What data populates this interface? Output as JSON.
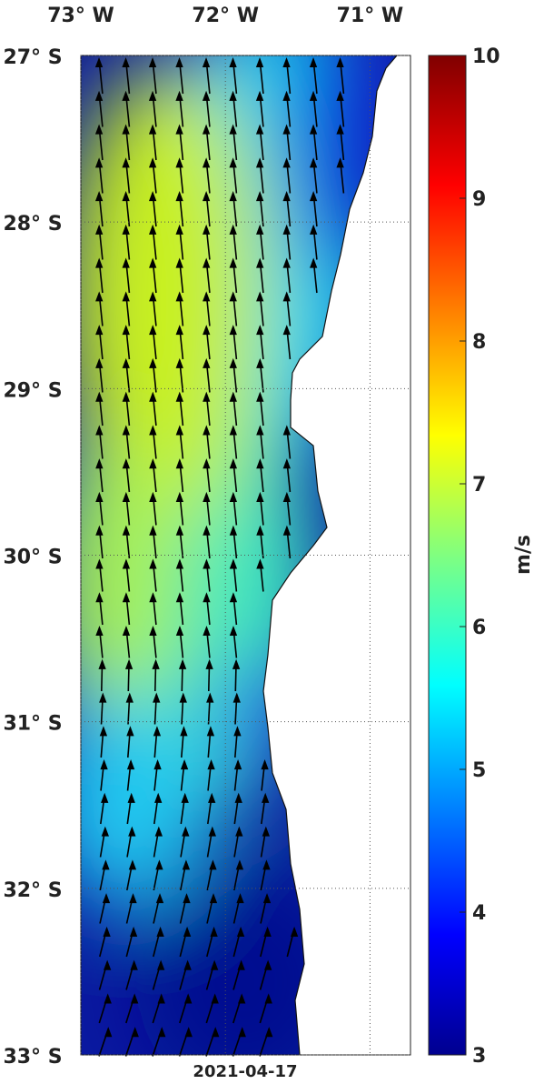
{
  "map": {
    "xlim": [
      -73,
      -70.72
    ],
    "ylim": [
      -33,
      -27
    ],
    "lon_ticks": [
      {
        "value": -73,
        "label": "73° W"
      },
      {
        "value": -72,
        "label": "72° W"
      },
      {
        "value": -71,
        "label": "71° W"
      }
    ],
    "lat_ticks": [
      {
        "value": -27,
        "label": "27° S"
      },
      {
        "value": -28,
        "label": "28° S"
      },
      {
        "value": -29,
        "label": "29° S"
      },
      {
        "value": -30,
        "label": "30° S"
      },
      {
        "value": -31,
        "label": "31° S"
      },
      {
        "value": -32,
        "label": "32° S"
      },
      {
        "value": -33,
        "label": "33° S"
      }
    ],
    "colorbar": {
      "label": "m/s",
      "lim": [
        3,
        10
      ],
      "ticks": [
        3,
        4,
        5,
        6,
        7,
        8,
        9,
        10
      ]
    },
    "date": "2021-04-17"
  }
}
